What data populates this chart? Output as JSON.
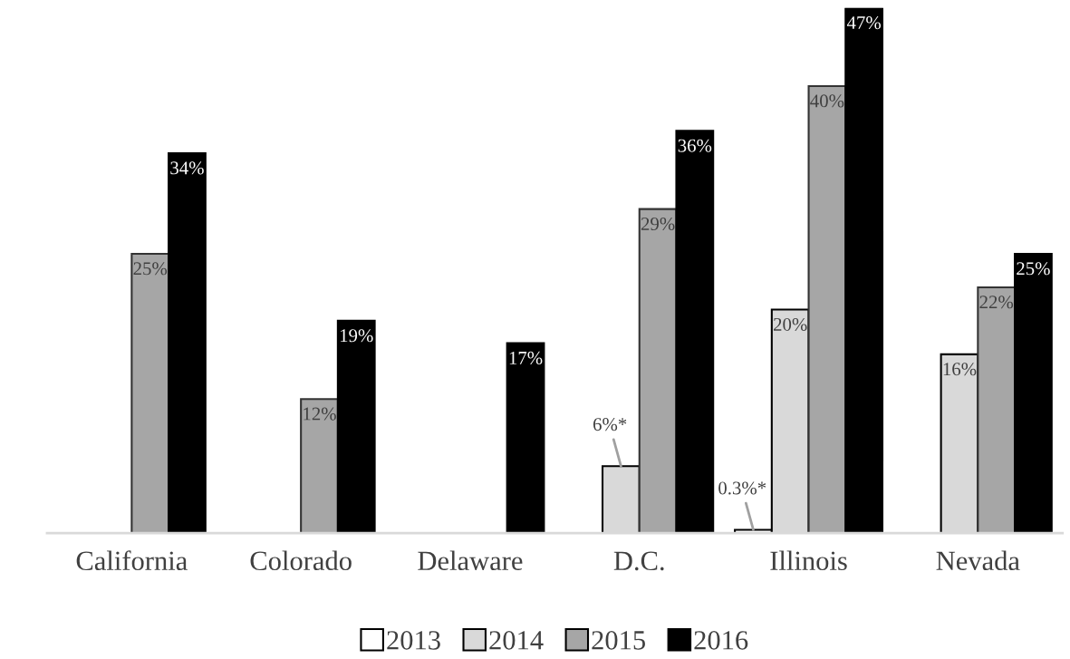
{
  "chart_data": {
    "type": "bar",
    "categories": [
      "California",
      "Colorado",
      "Delaware",
      "D.C.",
      "Illinois",
      "Nevada"
    ],
    "series": [
      {
        "name": "2013",
        "color": "#ffffff",
        "values": [
          null,
          null,
          null,
          null,
          0.3,
          null
        ],
        "value_labels": [
          null,
          null,
          null,
          null,
          "0.3%*",
          null
        ]
      },
      {
        "name": "2014",
        "color": "#d9d9d9",
        "values": [
          null,
          null,
          null,
          6,
          20,
          16
        ],
        "value_labels": [
          null,
          null,
          null,
          "6%*",
          "20%",
          "16%"
        ]
      },
      {
        "name": "2015",
        "color": "#a6a6a6",
        "values": [
          25,
          12,
          null,
          29,
          40,
          22
        ],
        "value_labels": [
          "25%",
          "12%",
          null,
          "29%",
          "40%",
          "22%"
        ]
      },
      {
        "name": "2016",
        "color": "#000000",
        "values": [
          34,
          19,
          17,
          36,
          47,
          25
        ],
        "value_labels": [
          "34%",
          "19%",
          "17%",
          "36%",
          "47%",
          "25%"
        ]
      }
    ],
    "legend": "bottom",
    "grid": false
  }
}
